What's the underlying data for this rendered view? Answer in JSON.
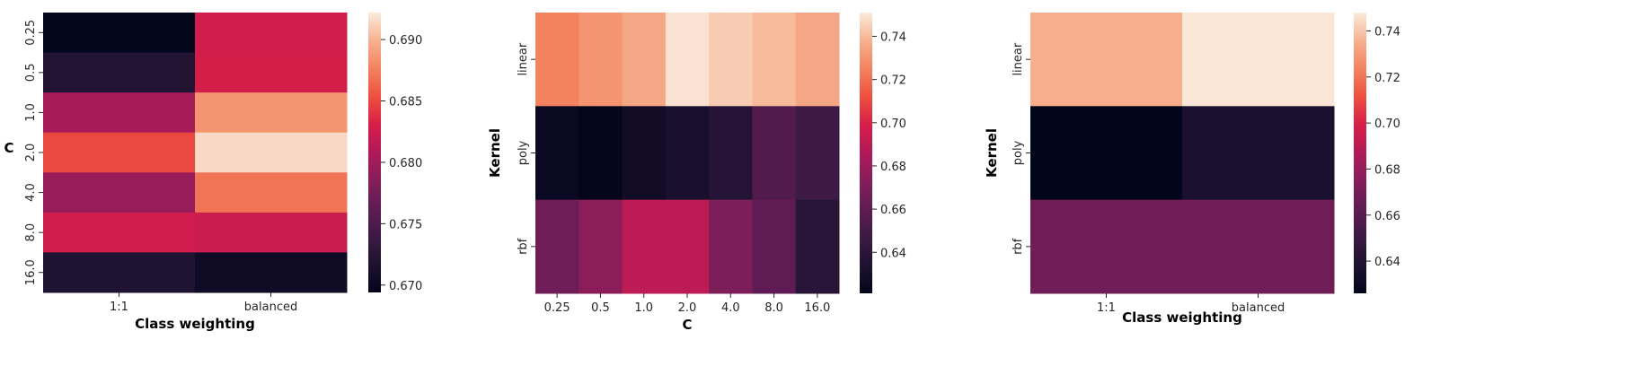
{
  "chart_data": [
    {
      "type": "heatmap",
      "title": "",
      "xlabel": "Class weighting",
      "ylabel": "C",
      "x_categories": [
        "1:1",
        "balanced"
      ],
      "y_categories": [
        "0.25",
        "0.5",
        "1.0",
        "2.0",
        "4.0",
        "8.0",
        "16.0"
      ],
      "values": [
        [
          0.6695,
          0.6827
        ],
        [
          0.672,
          0.6828
        ],
        [
          0.6803,
          0.6885
        ],
        [
          0.685,
          0.6915
        ],
        [
          0.6795,
          0.687
        ],
        [
          0.6825,
          0.6823
        ],
        [
          0.6718,
          0.6705
        ]
      ],
      "colorbar": {
        "range": [
          0.6694,
          0.6922
        ],
        "ticks": [
          0.67,
          0.675,
          0.68,
          0.685,
          0.69
        ],
        "tick_labels": [
          "0.670",
          "0.675",
          "0.680",
          "0.685",
          "0.690"
        ]
      },
      "colormap": "rocket"
    },
    {
      "type": "heatmap",
      "title": "",
      "xlabel": "C",
      "ylabel": "Kernel",
      "x_categories": [
        "0.25",
        "0.5",
        "1.0",
        "2.0",
        "4.0",
        "8.0",
        "16.0"
      ],
      "y_categories": [
        "linear",
        "poly",
        "rbf"
      ],
      "values": [
        [
          0.725,
          0.73,
          0.735,
          0.749,
          0.744,
          0.74,
          0.735
        ],
        [
          0.625,
          0.622,
          0.628,
          0.632,
          0.637,
          0.655,
          0.647
        ],
        [
          0.665,
          0.675,
          0.69,
          0.69,
          0.67,
          0.66,
          0.638
        ]
      ],
      "colorbar": {
        "range": [
          0.621,
          0.751
        ],
        "ticks": [
          0.64,
          0.66,
          0.68,
          0.7,
          0.72,
          0.74
        ],
        "tick_labels": [
          "0.64",
          "0.66",
          "0.68",
          "0.70",
          "0.72",
          "0.74"
        ]
      },
      "colormap": "rocket"
    },
    {
      "type": "heatmap",
      "title": "",
      "xlabel": "Class weighting",
      "ylabel": "Kernel",
      "x_categories": [
        "1:1",
        "balanced"
      ],
      "y_categories": [
        "linear",
        "poly",
        "rbf"
      ],
      "values": [
        [
          0.735,
          0.747
        ],
        [
          0.626,
          0.637
        ],
        [
          0.668,
          0.668
        ]
      ],
      "colorbar": {
        "range": [
          0.626,
          0.748
        ],
        "ticks": [
          0.64,
          0.66,
          0.68,
          0.7,
          0.72,
          0.74
        ],
        "tick_labels": [
          "0.64",
          "0.66",
          "0.68",
          "0.70",
          "0.72",
          "0.74"
        ]
      },
      "colormap": "rocket"
    }
  ]
}
